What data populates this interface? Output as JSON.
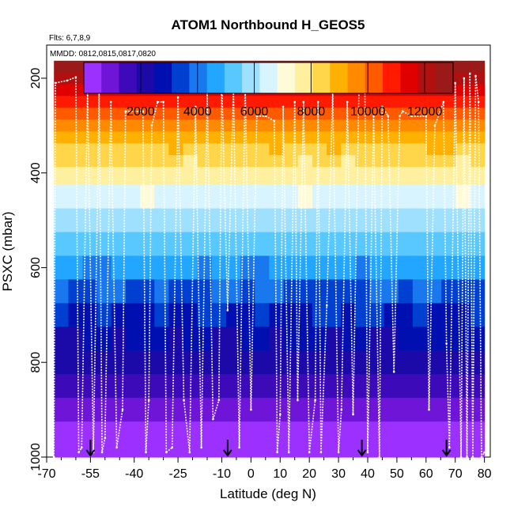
{
  "chart_data": {
    "type": "heatmap",
    "title": "ATOM1 Northbound H_GEOS5",
    "flights_label": "Flts: 6,7,8,9",
    "dates_label": "MMDD: 0812,0815,0817,0820",
    "xlabel": "Latitude (deg N)",
    "ylabel": "PSXC (mbar)",
    "xlim": [
      -70,
      82
    ],
    "ylim": [
      1000,
      130
    ],
    "x_ticks": [
      "-70",
      "-55",
      "-40",
      "-25",
      "-10",
      "0",
      "10",
      "20",
      "30",
      "40",
      "50",
      "60",
      "70",
      "80"
    ],
    "x_ticks_values": [
      -70,
      -55,
      -40,
      -25,
      -10,
      0,
      10,
      20,
      30,
      40,
      50,
      60,
      70,
      80
    ],
    "x_ticks_minor": [
      -65,
      -60,
      -50,
      -45,
      -35,
      -30,
      -20,
      -15,
      -5,
      5,
      15,
      25,
      35,
      45,
      55,
      65,
      75
    ],
    "y_ticks": [
      "200",
      "400",
      "600",
      "800",
      "1000"
    ],
    "y_ticks_values": [
      200,
      400,
      600,
      800,
      1000
    ],
    "colorbar": {
      "range": [
        0,
        13000
      ],
      "ticks": [
        "2000",
        "4000",
        "6000",
        "8000",
        "10000",
        "12000"
      ],
      "ticks_values": [
        2000,
        4000,
        6000,
        8000,
        10000,
        12000
      ],
      "colors": [
        "#9b30ff",
        "#6f15d8",
        "#3c0ab8",
        "#1c0aa8",
        "#0010b0",
        "#0040d0",
        "#1a78ee",
        "#22a6ff",
        "#59c8ff",
        "#9fe0ff",
        "#d8f4ff",
        "#fffbd8",
        "#fff0a0",
        "#ffd54a",
        "#ffb000",
        "#ff8a00",
        "#ff5a00",
        "#ff1a00",
        "#e00000",
        "#b01010",
        "#9a1a1a"
      ]
    },
    "levels_mbar": [
      175,
      200,
      225,
      250,
      275,
      300,
      325,
      350,
      375,
      400,
      450,
      500,
      550,
      600,
      650,
      700,
      750,
      800,
      850,
      900,
      950,
      1000
    ],
    "heights_m": [
      12800,
      12000,
      11300,
      10700,
      10100,
      9600,
      9100,
      8600,
      8100,
      7600,
      6700,
      5900,
      5100,
      4400,
      3700,
      3100,
      2500,
      2000,
      1500,
      1000,
      480,
      120
    ],
    "lat_range": [
      -67.5,
      80
    ],
    "flight_track_points": [
      [
        -67.5,
        1000
      ],
      [
        -67,
        210
      ],
      [
        -63,
        205
      ],
      [
        -60,
        198
      ],
      [
        -59,
        990
      ],
      [
        -58,
        980
      ],
      [
        -56,
        230
      ],
      [
        -54,
        990
      ],
      [
        -52,
        230
      ],
      [
        -51,
        990
      ],
      [
        -50,
        960
      ],
      [
        -48,
        250
      ],
      [
        -46,
        980
      ],
      [
        -44,
        900
      ],
      [
        -43,
        270
      ],
      [
        -37,
        270
      ],
      [
        -36,
        990
      ],
      [
        -35,
        880
      ],
      [
        -34,
        300
      ],
      [
        -32,
        250
      ],
      [
        -30,
        250
      ],
      [
        -29,
        990
      ],
      [
        -27,
        980
      ],
      [
        -25,
        240
      ],
      [
        -23,
        880
      ],
      [
        -21,
        990
      ],
      [
        -19,
        260
      ],
      [
        -17,
        980
      ],
      [
        -15,
        230
      ],
      [
        -13,
        920
      ],
      [
        -11,
        880
      ],
      [
        -10,
        200
      ],
      [
        -8,
        690
      ],
      [
        -6,
        220
      ],
      [
        -4,
        980
      ],
      [
        -2,
        210
      ],
      [
        0,
        900
      ],
      [
        2,
        280
      ],
      [
        5,
        280
      ],
      [
        8,
        290
      ],
      [
        9,
        990
      ],
      [
        10,
        910
      ],
      [
        11,
        260
      ],
      [
        13,
        990
      ],
      [
        15,
        250
      ],
      [
        16,
        880
      ],
      [
        18,
        250
      ],
      [
        20,
        990
      ],
      [
        22,
        880
      ],
      [
        23,
        250
      ],
      [
        24,
        990
      ],
      [
        26,
        680
      ],
      [
        28,
        230
      ],
      [
        30,
        990
      ],
      [
        31,
        900
      ],
      [
        33,
        250
      ],
      [
        35,
        910
      ],
      [
        37,
        230
      ],
      [
        39,
        190
      ],
      [
        40,
        990
      ],
      [
        42,
        280
      ],
      [
        44,
        1000
      ],
      [
        45,
        260
      ],
      [
        47,
        280
      ],
      [
        49,
        820
      ],
      [
        51,
        280
      ],
      [
        52,
        270
      ],
      [
        55,
        280
      ],
      [
        60,
        280
      ],
      [
        61,
        900
      ],
      [
        63,
        300
      ],
      [
        66,
        250
      ],
      [
        67,
        760
      ],
      [
        68,
        980
      ],
      [
        70,
        210
      ],
      [
        72,
        1000
      ],
      [
        73,
        200
      ],
      [
        74,
        1000
      ],
      [
        75,
        190
      ],
      [
        76,
        1000
      ],
      [
        77,
        195
      ],
      [
        78,
        250
      ],
      [
        79,
        1000
      ],
      [
        80,
        990
      ]
    ],
    "arrow_latitudes": [
      -55,
      -8,
      38,
      67
    ]
  }
}
